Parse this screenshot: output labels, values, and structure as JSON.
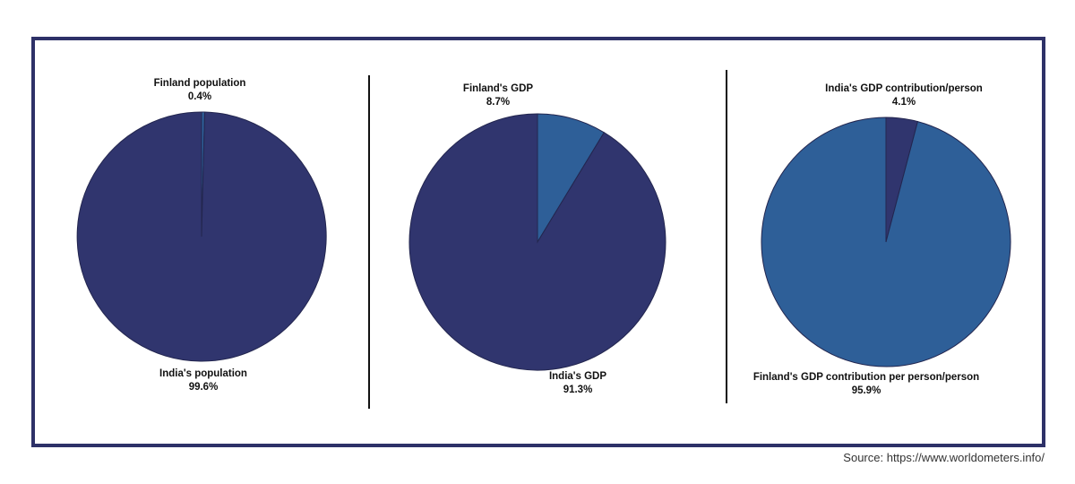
{
  "chart_data": [
    {
      "type": "pie",
      "slices": [
        {
          "label": "Finland population",
          "value": 0.4,
          "display": "0.4%",
          "color": "#2e5f98"
        },
        {
          "label": "India's population",
          "value": 99.6,
          "display": "99.6%",
          "color": "#30356e"
        }
      ]
    },
    {
      "type": "pie",
      "slices": [
        {
          "label": "Finland's GDP",
          "value": 8.7,
          "display": "8.7%",
          "color": "#2e5f98"
        },
        {
          "label": "India's GDP",
          "value": 91.3,
          "display": "91.3%",
          "color": "#30356e"
        }
      ]
    },
    {
      "type": "pie",
      "slices": [
        {
          "label": "India's GDP contribution/person",
          "value": 4.1,
          "display": "4.1%",
          "color": "#30356e"
        },
        {
          "label": "Finland's GDP contribution per person/person",
          "value": 95.9,
          "display": "95.9%",
          "color": "#2e5f98"
        }
      ]
    }
  ],
  "source": "Source: https://www.worldometers.info/"
}
